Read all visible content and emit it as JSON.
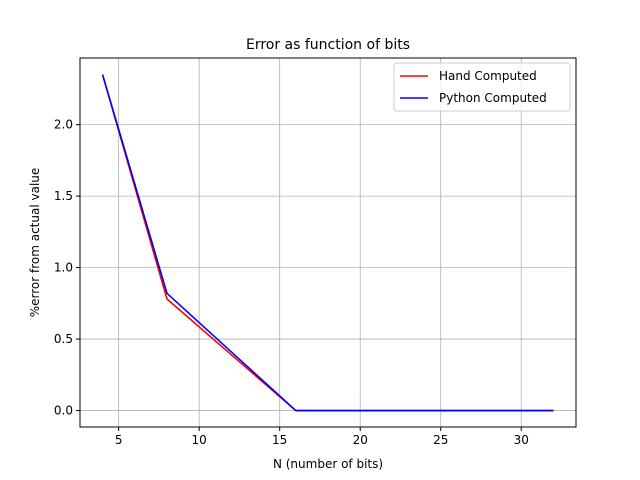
{
  "chart_data": {
    "type": "line",
    "title": "Error as function of bits",
    "xlabel": "N (number of bits)",
    "ylabel": "%error from actual value",
    "xlim": [
      2.6,
      33.4
    ],
    "ylim": [
      -0.115,
      2.466
    ],
    "xticks": [
      5,
      10,
      15,
      20,
      25,
      30
    ],
    "yticks": [
      0.0,
      0.5,
      1.0,
      1.5,
      2.0
    ],
    "xtick_labels": [
      "5",
      "10",
      "15",
      "20",
      "25",
      "30"
    ],
    "ytick_labels": [
      "0.0",
      "0.5",
      "1.0",
      "1.5",
      "2.0"
    ],
    "grid": true,
    "legend_position": "top-right",
    "series": [
      {
        "name": "Hand Computed",
        "color": "#ff0000",
        "x": [
          4,
          8,
          16,
          32
        ],
        "y": [
          2.35,
          0.78,
          0.0,
          0.0
        ]
      },
      {
        "name": "Python Computed",
        "color": "#0000ff",
        "x": [
          4,
          8,
          16,
          32
        ],
        "y": [
          2.35,
          0.82,
          0.0,
          0.0
        ]
      }
    ]
  }
}
